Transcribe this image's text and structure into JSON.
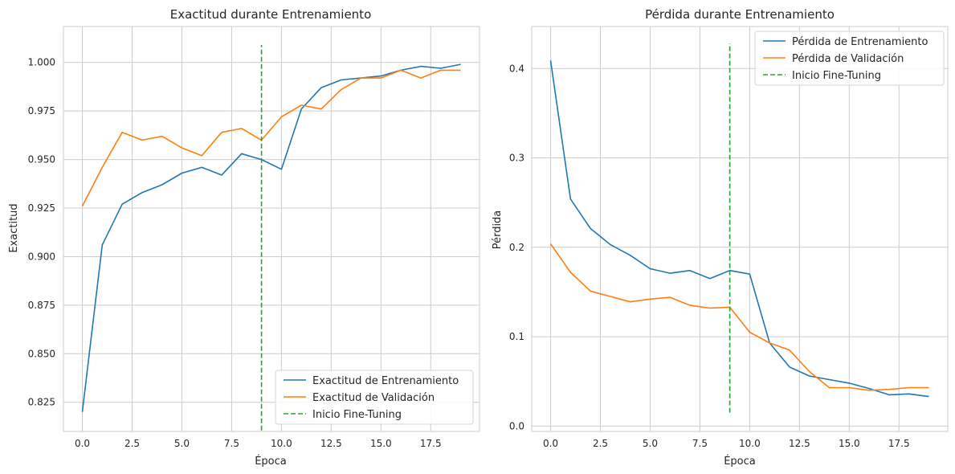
{
  "charts": [
    {
      "id": "accuracy",
      "type": "line",
      "title": "Exactitud durante Entrenamiento",
      "xlabel": "Época",
      "ylabel": "Exactitud",
      "xlim": [
        -0.95,
        19.95
      ],
      "ylim": [
        0.81,
        1.0185
      ],
      "xticks": [
        0.0,
        2.5,
        5.0,
        7.5,
        10.0,
        12.5,
        15.0,
        17.5
      ],
      "xtick_labels": [
        "0.0",
        "2.5",
        "5.0",
        "7.5",
        "10.0",
        "12.5",
        "15.0",
        "17.5"
      ],
      "yticks": [
        0.825,
        0.85,
        0.875,
        0.9,
        0.925,
        0.95,
        0.975,
        1.0
      ],
      "ytick_labels": [
        "0.825",
        "0.850",
        "0.875",
        "0.900",
        "0.925",
        "0.950",
        "0.975",
        "1.000"
      ],
      "grid": true,
      "legend_position": "lower-right",
      "series": [
        {
          "name": "Exactitud de Entrenamiento",
          "color": "#1f77b4",
          "style": "solid",
          "x": [
            0,
            1,
            2,
            3,
            4,
            5,
            6,
            7,
            8,
            9,
            10,
            11,
            12,
            13,
            14,
            15,
            16,
            17,
            18,
            19
          ],
          "y": [
            0.82,
            0.906,
            0.927,
            0.933,
            0.937,
            0.943,
            0.946,
            0.942,
            0.953,
            0.95,
            0.945,
            0.976,
            0.987,
            0.991,
            0.992,
            0.993,
            0.996,
            0.998,
            0.997,
            0.999
          ]
        },
        {
          "name": "Exactitud de Validación",
          "color": "#ff7f0e",
          "style": "solid",
          "x": [
            0,
            1,
            2,
            3,
            4,
            5,
            6,
            7,
            8,
            9,
            10,
            11,
            12,
            13,
            14,
            15,
            16,
            17,
            18,
            19
          ],
          "y": [
            0.926,
            0.946,
            0.964,
            0.96,
            0.962,
            0.956,
            0.952,
            0.964,
            0.966,
            0.96,
            0.972,
            0.978,
            0.976,
            0.986,
            0.992,
            0.992,
            0.996,
            0.992,
            0.996,
            0.996
          ]
        },
        {
          "name": "Inicio Fine-Tuning",
          "color": "#2ca02c",
          "style": "dashed",
          "x": [
            9,
            9
          ],
          "y": [
            0.8105,
            1.009
          ]
        }
      ]
    },
    {
      "id": "loss",
      "type": "line",
      "title": "Pérdida durante Entrenamiento",
      "xlabel": "Época",
      "ylabel": "Pérdida",
      "xlim": [
        -0.95,
        19.95
      ],
      "ylim": [
        -0.006,
        0.447
      ],
      "xticks": [
        0.0,
        2.5,
        5.0,
        7.5,
        10.0,
        12.5,
        15.0,
        17.5
      ],
      "xtick_labels": [
        "0.0",
        "2.5",
        "5.0",
        "7.5",
        "10.0",
        "12.5",
        "15.0",
        "17.5"
      ],
      "yticks": [
        0.0,
        0.1,
        0.2,
        0.3,
        0.4
      ],
      "ytick_labels": [
        "0.0",
        "0.1",
        "0.2",
        "0.3",
        "0.4"
      ],
      "grid": true,
      "legend_position": "upper-right",
      "series": [
        {
          "name": "Pérdida de Entrenamiento",
          "color": "#1f77b4",
          "style": "solid",
          "x": [
            0,
            1,
            2,
            3,
            4,
            5,
            6,
            7,
            8,
            9,
            10,
            11,
            12,
            13,
            14,
            15,
            16,
            17,
            18,
            19
          ],
          "y": [
            0.409,
            0.254,
            0.221,
            0.203,
            0.191,
            0.176,
            0.171,
            0.174,
            0.165,
            0.174,
            0.17,
            0.093,
            0.066,
            0.056,
            0.052,
            0.048,
            0.042,
            0.035,
            0.036,
            0.033
          ]
        },
        {
          "name": "Pérdida de Validación",
          "color": "#ff7f0e",
          "style": "solid",
          "x": [
            0,
            1,
            2,
            3,
            4,
            5,
            6,
            7,
            8,
            9,
            10,
            11,
            12,
            13,
            14,
            15,
            16,
            17,
            18,
            19
          ],
          "y": [
            0.204,
            0.172,
            0.151,
            0.145,
            0.139,
            0.142,
            0.144,
            0.135,
            0.132,
            0.133,
            0.105,
            0.093,
            0.085,
            0.061,
            0.043,
            0.043,
            0.04,
            0.041,
            0.043,
            0.043
          ]
        },
        {
          "name": "Inicio Fine-Tuning",
          "color": "#2ca02c",
          "style": "dashed",
          "x": [
            9,
            9
          ],
          "y": [
            0.015,
            0.428
          ]
        }
      ]
    }
  ]
}
